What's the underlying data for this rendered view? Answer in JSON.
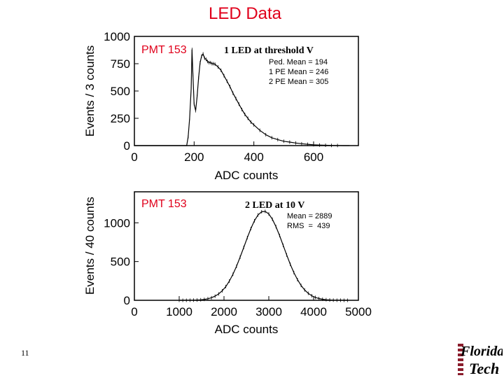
{
  "slide": {
    "title": "LED Data",
    "page_number": "11",
    "logo_text": [
      "Florida",
      "Tech"
    ],
    "accent_color": "#e0001b"
  },
  "chart_data": [
    {
      "type": "histogram",
      "panel_label": "PMT 153",
      "title": "1 LED at threshold V",
      "stats": [
        "Ped. Mean = 194",
        "1 PE Mean = 246",
        "2 PE Mean = 305"
      ],
      "xlabel": "ADC counts",
      "ylabel": "Events / 3 counts",
      "xlim": [
        0,
        750
      ],
      "ylim": [
        0,
        1000
      ],
      "x_ticks": [
        0,
        200,
        400,
        600
      ],
      "y_ticks": [
        0,
        250,
        500,
        750,
        1000
      ],
      "x": [
        0,
        50,
        100,
        150,
        175,
        180,
        185,
        190,
        193,
        196,
        200,
        205,
        210,
        215,
        220,
        225,
        230,
        235,
        240,
        245,
        250,
        255,
        260,
        265,
        270,
        280,
        290,
        300,
        310,
        320,
        330,
        340,
        350,
        360,
        370,
        380,
        390,
        400,
        420,
        440,
        460,
        480,
        500,
        520,
        540,
        560,
        580,
        600,
        620,
        640,
        660,
        680,
        700,
        720
      ],
      "y": [
        0,
        0,
        0,
        0,
        0,
        80,
        250,
        520,
        880,
        650,
        380,
        320,
        450,
        620,
        760,
        820,
        840,
        800,
        790,
        770,
        760,
        760,
        750,
        750,
        745,
        720,
        690,
        640,
        590,
        540,
        480,
        430,
        380,
        330,
        285,
        250,
        215,
        190,
        140,
        100,
        72,
        55,
        40,
        32,
        24,
        17,
        12,
        8,
        5,
        3,
        2,
        1,
        0,
        0
      ]
    },
    {
      "type": "histogram",
      "panel_label": "PMT 153",
      "title": "2 LED at 10 V",
      "stats": [
        "Mean = 2889",
        "RMS  =  439"
      ],
      "xlabel": "ADC counts",
      "ylabel": "Events / 40 counts",
      "xlim": [
        0,
        5000
      ],
      "ylim": [
        0,
        1400
      ],
      "x_ticks": [
        0,
        1000,
        2000,
        3000,
        4000,
        5000
      ],
      "y_ticks": [
        0,
        500,
        1000
      ],
      "gaussian": {
        "mean": 2889,
        "sigma": 439,
        "peak": 1150
      }
    }
  ]
}
